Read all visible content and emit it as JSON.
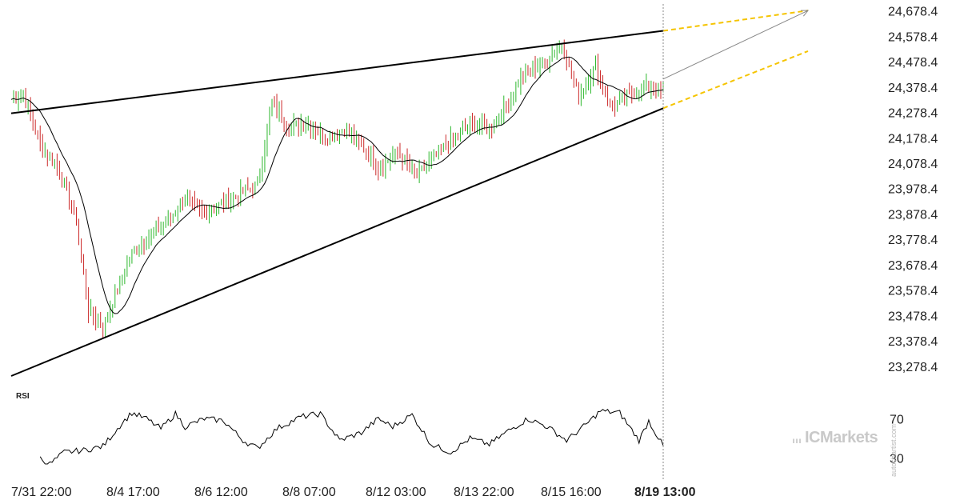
{
  "chart_data": {
    "type": "candlestick",
    "panels": [
      {
        "name": "price",
        "y_ticks": [
          "24,678.4",
          "24,578.4",
          "24,478.4",
          "24,378.4",
          "24,278.4",
          "24,178.4",
          "24,078.4",
          "23,978.4",
          "23,878.4",
          "23,778.4",
          "23,678.4",
          "23,578.4",
          "23,478.4",
          "23,378.4",
          "23,278.4"
        ],
        "ylim": [
          23240,
          24690
        ],
        "x_ticks": [
          "7/31 22:00",
          "8/4 17:00",
          "8/6 12:00",
          "8/8 07:00",
          "8/12 03:00",
          "8/13 22:00",
          "8/15 16:00",
          "8/19 13:00"
        ],
        "bar_count": 270,
        "moving_average_color": "#000000",
        "up_color": "#2db82d",
        "down_color": "#cc2a2a",
        "pattern": "rising wedge",
        "trendlines": [
          {
            "role": "upper",
            "from": [
              0,
              24275
            ],
            "to": [
              270,
              24600
            ]
          },
          {
            "role": "lower",
            "from": [
              0,
              23240
            ],
            "to": [
              270,
              24295
            ]
          }
        ],
        "projection": {
          "color": "#f5c400",
          "upper": {
            "from": [
              270,
              24600
            ],
            "to": [
              328,
              24680
            ]
          },
          "lower": {
            "from": [
              270,
              24295
            ],
            "to": [
              328,
              24520
            ]
          },
          "arrow": {
            "from": [
              270,
              24410
            ],
            "to": [
              328,
              24680
            ],
            "color": "#888888"
          }
        },
        "current_marker": {
          "bar": 270,
          "label": "8/19 13:00"
        },
        "ohlc_sample": [
          {
            "t": 0,
            "c": 24330
          },
          {
            "t": 5,
            "c": 24350
          },
          {
            "t": 12,
            "c": 24150
          },
          {
            "t": 20,
            "c": 24050
          },
          {
            "t": 27,
            "c": 23850
          },
          {
            "t": 32,
            "c": 23500
          },
          {
            "t": 38,
            "c": 23430
          },
          {
            "t": 44,
            "c": 23580
          },
          {
            "t": 50,
            "c": 23720
          },
          {
            "t": 58,
            "c": 23800
          },
          {
            "t": 65,
            "c": 23850
          },
          {
            "t": 72,
            "c": 23940
          },
          {
            "t": 80,
            "c": 23880
          },
          {
            "t": 88,
            "c": 23920
          },
          {
            "t": 95,
            "c": 23960
          },
          {
            "t": 102,
            "c": 23990
          },
          {
            "t": 108,
            "c": 24320
          },
          {
            "t": 115,
            "c": 24220
          },
          {
            "t": 122,
            "c": 24240
          },
          {
            "t": 130,
            "c": 24180
          },
          {
            "t": 138,
            "c": 24210
          },
          {
            "t": 145,
            "c": 24150
          },
          {
            "t": 152,
            "c": 24060
          },
          {
            "t": 160,
            "c": 24120
          },
          {
            "t": 168,
            "c": 24030
          },
          {
            "t": 175,
            "c": 24100
          },
          {
            "t": 182,
            "c": 24170
          },
          {
            "t": 190,
            "c": 24230
          },
          {
            "t": 198,
            "c": 24210
          },
          {
            "t": 205,
            "c": 24310
          },
          {
            "t": 212,
            "c": 24430
          },
          {
            "t": 220,
            "c": 24470
          },
          {
            "t": 228,
            "c": 24550
          },
          {
            "t": 235,
            "c": 24340
          },
          {
            "t": 242,
            "c": 24460
          },
          {
            "t": 248,
            "c": 24300
          },
          {
            "t": 255,
            "c": 24340
          },
          {
            "t": 262,
            "c": 24380
          },
          {
            "t": 270,
            "c": 24360
          }
        ]
      },
      {
        "name": "rsi",
        "label": "RSI",
        "y_ticks": [
          "70",
          "30"
        ],
        "ylim": [
          20,
          85
        ],
        "values_sample": [
          {
            "t": 12,
            "v": 30
          },
          {
            "t": 16,
            "v": 24
          },
          {
            "t": 22,
            "v": 36
          },
          {
            "t": 30,
            "v": 38
          },
          {
            "t": 38,
            "v": 42
          },
          {
            "t": 46,
            "v": 66
          },
          {
            "t": 50,
            "v": 76
          },
          {
            "t": 56,
            "v": 70
          },
          {
            "t": 62,
            "v": 60
          },
          {
            "t": 68,
            "v": 75
          },
          {
            "t": 72,
            "v": 62
          },
          {
            "t": 80,
            "v": 70
          },
          {
            "t": 88,
            "v": 68
          },
          {
            "t": 96,
            "v": 48
          },
          {
            "t": 102,
            "v": 40
          },
          {
            "t": 110,
            "v": 60
          },
          {
            "t": 120,
            "v": 72
          },
          {
            "t": 128,
            "v": 75
          },
          {
            "t": 136,
            "v": 48
          },
          {
            "t": 145,
            "v": 56
          },
          {
            "t": 152,
            "v": 70
          },
          {
            "t": 158,
            "v": 62
          },
          {
            "t": 166,
            "v": 74
          },
          {
            "t": 174,
            "v": 44
          },
          {
            "t": 182,
            "v": 36
          },
          {
            "t": 190,
            "v": 50
          },
          {
            "t": 198,
            "v": 44
          },
          {
            "t": 206,
            "v": 58
          },
          {
            "t": 214,
            "v": 70
          },
          {
            "t": 222,
            "v": 62
          },
          {
            "t": 230,
            "v": 48
          },
          {
            "t": 238,
            "v": 64
          },
          {
            "t": 244,
            "v": 78
          },
          {
            "t": 252,
            "v": 76
          },
          {
            "t": 260,
            "v": 48
          },
          {
            "t": 264,
            "v": 68
          },
          {
            "t": 270,
            "v": 42
          }
        ]
      }
    ]
  },
  "branding": {
    "logo_text": "ICMarkets",
    "credit": "autochartist.com"
  }
}
